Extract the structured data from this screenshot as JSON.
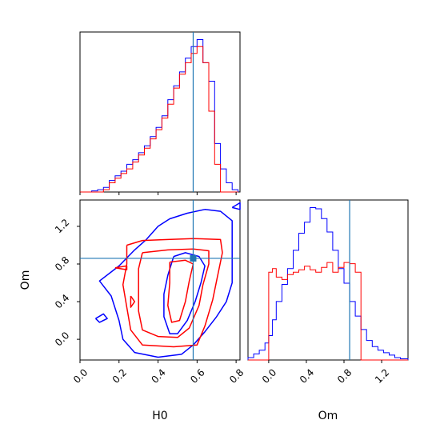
{
  "colors": {
    "series_a": "#0000ff",
    "series_b": "#ff0000",
    "truth": "#1f77b4",
    "axis": "#000000"
  },
  "labels": {
    "x_h0": "H0",
    "x_om": "Om",
    "y_om": "Om"
  },
  "chart_data": [
    {
      "panel": "top-left",
      "type": "step-histogram",
      "parameter": "H0",
      "xlim": [
        0.0,
        0.82
      ],
      "truth": 0.58,
      "y_ticks_shown": false,
      "x_ticklabels_shown": false,
      "bin_edges": [
        0.0,
        0.03,
        0.06,
        0.09,
        0.12,
        0.15,
        0.18,
        0.21,
        0.24,
        0.27,
        0.3,
        0.33,
        0.36,
        0.39,
        0.42,
        0.45,
        0.48,
        0.51,
        0.54,
        0.57,
        0.6,
        0.63,
        0.66,
        0.69,
        0.72,
        0.75,
        0.78,
        0.81
      ],
      "series": [
        {
          "color_key": "series_a",
          "values": [
            0,
            0,
            0.5,
            1,
            2,
            5,
            7,
            9,
            12,
            14,
            17,
            20,
            24,
            28,
            33,
            40,
            46,
            52,
            58,
            63,
            66,
            56,
            48,
            21,
            10,
            4,
            1
          ]
        },
        {
          "color_key": "series_b",
          "values": [
            0,
            0,
            0,
            0,
            1,
            4,
            6,
            8,
            10,
            13,
            16,
            19,
            23,
            27,
            32,
            38,
            45,
            51,
            56,
            60,
            63,
            56,
            35,
            12,
            0,
            0,
            0
          ]
        }
      ]
    },
    {
      "panel": "bottom-left",
      "type": "contour",
      "xlabel_key": "x_h0",
      "ylabel_key": "y_om",
      "xlim": [
        0.0,
        0.82
      ],
      "ylim": [
        -0.22,
        1.48
      ],
      "x_ticks": [
        "0.0",
        "0.2",
        "0.4",
        "0.6",
        "0.8"
      ],
      "y_ticks": [
        "0.0",
        "0.4",
        "0.8",
        "1.2"
      ],
      "truth": {
        "x": 0.58,
        "y": 0.86
      },
      "series": [
        {
          "color_key": "series_a",
          "contours": [
            [
              [
                0.46,
                1.28
              ],
              [
                0.55,
                1.34
              ],
              [
                0.64,
                1.38
              ],
              [
                0.72,
                1.36
              ],
              [
                0.78,
                1.26
              ],
              [
                0.78,
                0.96
              ],
              [
                0.78,
                0.6
              ],
              [
                0.75,
                0.4
              ],
              [
                0.7,
                0.24
              ],
              [
                0.64,
                0.08
              ],
              [
                0.58,
                -0.06
              ],
              [
                0.52,
                -0.16
              ],
              [
                0.4,
                -0.19
              ],
              [
                0.28,
                -0.14
              ],
              [
                0.22,
                0.0
              ],
              [
                0.2,
                0.2
              ],
              [
                0.16,
                0.46
              ],
              [
                0.1,
                0.62
              ],
              [
                0.2,
                0.78
              ],
              [
                0.28,
                0.95
              ],
              [
                0.34,
                1.06
              ],
              [
                0.4,
                1.2
              ],
              [
                0.46,
                1.28
              ]
            ],
            [
              [
                0.48,
                0.88
              ],
              [
                0.54,
                0.92
              ],
              [
                0.61,
                0.88
              ],
              [
                0.64,
                0.78
              ],
              [
                0.62,
                0.6
              ],
              [
                0.59,
                0.4
              ],
              [
                0.55,
                0.2
              ],
              [
                0.5,
                0.06
              ],
              [
                0.46,
                0.06
              ],
              [
                0.43,
                0.24
              ],
              [
                0.43,
                0.48
              ],
              [
                0.45,
                0.68
              ],
              [
                0.48,
                0.88
              ]
            ],
            [
              [
                0.08,
                0.22
              ],
              [
                0.12,
                0.27
              ],
              [
                0.14,
                0.22
              ],
              [
                0.1,
                0.18
              ],
              [
                0.08,
                0.22
              ]
            ],
            [
              [
                0.78,
                1.4
              ],
              [
                0.82,
                1.45
              ],
              [
                0.82,
                1.38
              ],
              [
                0.78,
                1.4
              ]
            ]
          ]
        },
        {
          "color_key": "series_b",
          "contours": [
            [
              [
                0.24,
                1.0
              ],
              [
                0.32,
                1.05
              ],
              [
                0.45,
                1.06
              ],
              [
                0.58,
                1.07
              ],
              [
                0.72,
                1.06
              ],
              [
                0.73,
                0.92
              ],
              [
                0.7,
                0.62
              ],
              [
                0.68,
                0.42
              ],
              [
                0.64,
                0.14
              ],
              [
                0.6,
                -0.06
              ],
              [
                0.48,
                -0.08
              ],
              [
                0.32,
                -0.06
              ],
              [
                0.26,
                0.1
              ],
              [
                0.24,
                0.34
              ],
              [
                0.22,
                0.58
              ],
              [
                0.24,
                0.8
              ],
              [
                0.24,
                1.0
              ]
            ],
            [
              [
                0.32,
                0.92
              ],
              [
                0.45,
                0.95
              ],
              [
                0.58,
                0.96
              ],
              [
                0.66,
                0.94
              ],
              [
                0.66,
                0.8
              ],
              [
                0.63,
                0.58
              ],
              [
                0.61,
                0.36
              ],
              [
                0.56,
                0.12
              ],
              [
                0.5,
                0.02
              ],
              [
                0.4,
                0.03
              ],
              [
                0.32,
                0.1
              ],
              [
                0.3,
                0.3
              ],
              [
                0.3,
                0.55
              ],
              [
                0.3,
                0.75
              ],
              [
                0.32,
                0.92
              ]
            ],
            [
              [
                0.46,
                0.82
              ],
              [
                0.54,
                0.84
              ],
              [
                0.58,
                0.8
              ],
              [
                0.56,
                0.62
              ],
              [
                0.54,
                0.4
              ],
              [
                0.51,
                0.2
              ],
              [
                0.47,
                0.18
              ],
              [
                0.45,
                0.36
              ],
              [
                0.46,
                0.6
              ],
              [
                0.46,
                0.82
              ]
            ],
            [
              [
                0.18,
                0.76
              ],
              [
                0.24,
                0.78
              ],
              [
                0.24,
                0.74
              ],
              [
                0.18,
                0.76
              ]
            ],
            [
              [
                0.26,
                0.46
              ],
              [
                0.28,
                0.4
              ],
              [
                0.26,
                0.34
              ],
              [
                0.26,
                0.46
              ]
            ]
          ]
        }
      ]
    },
    {
      "panel": "bottom-right",
      "type": "step-histogram",
      "parameter": "Om",
      "xlabel_key": "x_om",
      "xlim": [
        -0.22,
        1.48
      ],
      "x_ticks": [
        "0.0",
        "0.4",
        "0.8",
        "1.2"
      ],
      "truth": 0.86,
      "y_ticks_shown": false,
      "bin_edges": [
        -0.22,
        -0.16,
        -0.1,
        -0.04,
        0.0,
        0.04,
        0.08,
        0.14,
        0.2,
        0.26,
        0.32,
        0.38,
        0.44,
        0.5,
        0.56,
        0.62,
        0.68,
        0.74,
        0.8,
        0.86,
        0.92,
        0.98,
        1.04,
        1.1,
        1.16,
        1.22,
        1.28,
        1.34,
        1.4,
        1.48
      ],
      "series": [
        {
          "color_key": "series_a",
          "values": [
            2,
            5,
            8,
            14,
            20,
            33,
            48,
            62,
            75,
            90,
            104,
            113,
            125,
            124,
            116,
            105,
            90,
            75,
            63,
            48,
            36,
            25,
            16,
            11,
            8,
            6,
            4,
            2,
            1
          ]
        },
        {
          "color_key": "series_b",
          "values": [
            0,
            0,
            0,
            0,
            72,
            75,
            68,
            66,
            70,
            72,
            74,
            77,
            74,
            72,
            76,
            80,
            72,
            76,
            80,
            79,
            72,
            0,
            0,
            0,
            0,
            0,
            0,
            0,
            0
          ]
        }
      ]
    }
  ]
}
